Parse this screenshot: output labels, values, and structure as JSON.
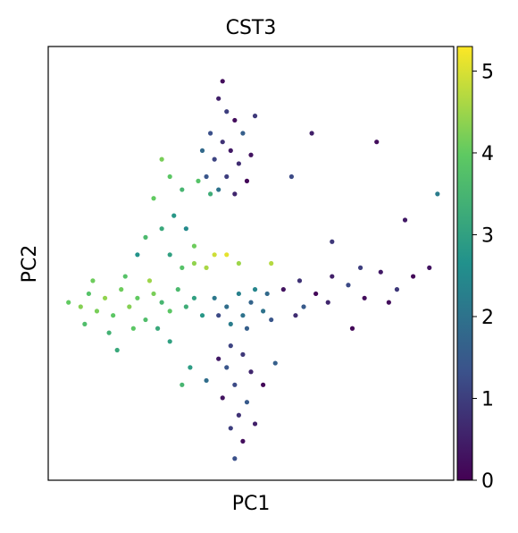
{
  "chart_data": {
    "type": "scatter",
    "title": "CST3",
    "xlabel": "PC1",
    "ylabel": "PC2",
    "colormap": "viridis",
    "clim": [
      0,
      5.3
    ],
    "cticks": [
      0,
      1,
      2,
      3,
      4,
      5
    ],
    "xlim": [
      0,
      100
    ],
    "ylim": [
      0,
      100
    ],
    "points": [
      [
        42,
        88,
        0.5
      ],
      [
        44,
        85,
        1.0
      ],
      [
        46,
        83,
        0.2
      ],
      [
        40,
        80,
        1.3
      ],
      [
        43,
        78,
        0.8
      ],
      [
        48,
        80,
        1.6
      ],
      [
        45,
        76,
        0.4
      ],
      [
        41,
        74,
        1.1
      ],
      [
        47,
        73,
        0.7
      ],
      [
        50,
        75,
        0.3
      ],
      [
        39,
        70,
        1.4
      ],
      [
        44,
        70,
        1.0
      ],
      [
        49,
        69,
        0.1
      ],
      [
        42,
        67,
        2.0
      ],
      [
        46,
        66,
        0.6
      ],
      [
        43,
        92,
        0.2
      ],
      [
        51,
        84,
        0.9
      ],
      [
        38,
        76,
        1.8
      ],
      [
        37,
        69,
        3.8
      ],
      [
        40,
        66,
        3.3
      ],
      [
        28,
        74,
        4.2
      ],
      [
        30,
        70,
        3.9
      ],
      [
        33,
        67,
        3.5
      ],
      [
        26,
        65,
        4.0
      ],
      [
        31,
        61,
        2.8
      ],
      [
        28,
        58,
        3.2
      ],
      [
        24,
        56,
        3.6
      ],
      [
        34,
        58,
        2.5
      ],
      [
        30,
        52,
        3.0
      ],
      [
        36,
        54,
        4.1
      ],
      [
        22,
        52,
        2.7
      ],
      [
        33,
        49,
        3.8
      ],
      [
        41,
        52,
        4.9
      ],
      [
        44,
        52,
        5.1
      ],
      [
        39,
        49,
        4.6
      ],
      [
        47,
        50,
        4.5
      ],
      [
        36,
        50,
        4.4
      ],
      [
        55,
        50,
        4.7
      ],
      [
        5,
        41,
        4.0
      ],
      [
        8,
        40,
        4.3
      ],
      [
        10,
        43,
        3.8
      ],
      [
        12,
        39,
        4.2
      ],
      [
        14,
        42,
        4.4
      ],
      [
        16,
        38,
        3.9
      ],
      [
        18,
        44,
        4.1
      ],
      [
        20,
        40,
        4.3
      ],
      [
        22,
        42,
        4.0
      ],
      [
        24,
        37,
        3.7
      ],
      [
        26,
        43,
        4.2
      ],
      [
        28,
        41,
        3.5
      ],
      [
        30,
        39,
        3.9
      ],
      [
        32,
        44,
        3.6
      ],
      [
        34,
        40,
        3.3
      ],
      [
        36,
        42,
        3.0
      ],
      [
        38,
        38,
        2.8
      ],
      [
        9,
        36,
        3.7
      ],
      [
        15,
        34,
        3.4
      ],
      [
        21,
        35,
        3.9
      ],
      [
        27,
        35,
        3.2
      ],
      [
        11,
        46,
        4.1
      ],
      [
        19,
        47,
        3.8
      ],
      [
        25,
        46,
        4.5
      ],
      [
        17,
        30,
        3.2
      ],
      [
        30,
        32,
        3.0
      ],
      [
        35,
        26,
        2.9
      ],
      [
        33,
        22,
        3.5
      ],
      [
        41,
        42,
        2.1
      ],
      [
        44,
        40,
        1.9
      ],
      [
        47,
        43,
        2.3
      ],
      [
        50,
        41,
        1.7
      ],
      [
        53,
        39,
        2.0
      ],
      [
        45,
        36,
        2.2
      ],
      [
        49,
        35,
        1.6
      ],
      [
        42,
        38,
        1.2
      ],
      [
        51,
        44,
        2.4
      ],
      [
        55,
        37,
        1.4
      ],
      [
        48,
        38,
        2.0
      ],
      [
        54,
        43,
        1.8
      ],
      [
        45,
        31,
        1.1
      ],
      [
        48,
        29,
        0.9
      ],
      [
        44,
        26,
        1.4
      ],
      [
        50,
        25,
        0.6
      ],
      [
        46,
        22,
        1.2
      ],
      [
        43,
        19,
        0.3
      ],
      [
        49,
        18,
        1.5
      ],
      [
        47,
        15,
        0.8
      ],
      [
        45,
        12,
        1.0
      ],
      [
        48,
        9,
        0.2
      ],
      [
        46,
        5,
        1.3
      ],
      [
        51,
        13,
        0.5
      ],
      [
        42,
        28,
        0.4
      ],
      [
        53,
        22,
        0.1
      ],
      [
        56,
        27,
        1.6
      ],
      [
        39,
        23,
        1.9
      ],
      [
        58,
        44,
        0.3
      ],
      [
        62,
        46,
        0.8
      ],
      [
        66,
        43,
        0.1
      ],
      [
        70,
        47,
        0.5
      ],
      [
        74,
        45,
        1.2
      ],
      [
        78,
        42,
        0.2
      ],
      [
        82,
        48,
        0.4
      ],
      [
        86,
        44,
        0.9
      ],
      [
        90,
        47,
        0.1
      ],
      [
        94,
        49,
        0.3
      ],
      [
        69,
        41,
        0.6
      ],
      [
        77,
        49,
        1.0
      ],
      [
        63,
        40,
        1.5
      ],
      [
        84,
        41,
        0.2
      ],
      [
        61,
        38,
        0.7
      ],
      [
        75,
        35,
        0.1
      ],
      [
        70,
        55,
        0.9
      ],
      [
        81,
        78,
        0.2
      ],
      [
        88,
        60,
        0.4
      ],
      [
        96,
        66,
        2.2
      ],
      [
        65,
        80,
        0.5
      ],
      [
        60,
        70,
        1.2
      ]
    ]
  }
}
